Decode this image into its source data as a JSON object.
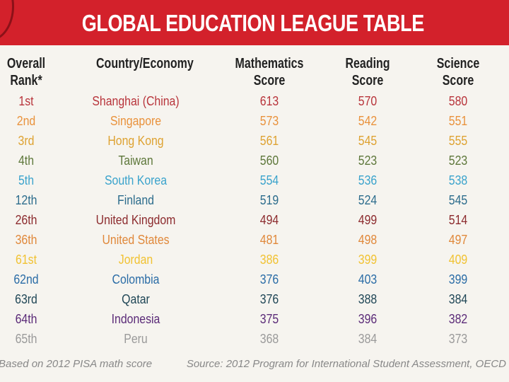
{
  "header": {
    "title": "GLOBAL EDUCATION LEAGUE TABLE"
  },
  "table": {
    "columns": [
      {
        "lines": [
          "Overall",
          "Rank*"
        ]
      },
      {
        "lines": [
          "Country/Economy"
        ]
      },
      {
        "lines": [
          "Mathematics",
          "Score"
        ]
      },
      {
        "lines": [
          "Reading",
          "Score"
        ]
      },
      {
        "lines": [
          "Science",
          "Score"
        ]
      }
    ],
    "rows": [
      {
        "color": "#b8343b",
        "cells": [
          "1st",
          "Shanghai (China)",
          613,
          570,
          580
        ]
      },
      {
        "color": "#e9923c",
        "cells": [
          "2nd",
          "Singapore",
          573,
          542,
          551
        ]
      },
      {
        "color": "#dea231",
        "cells": [
          "3rd",
          "Hong Kong",
          561,
          545,
          555
        ]
      },
      {
        "color": "#5d773a",
        "cells": [
          "4th",
          "Taiwan",
          560,
          523,
          523
        ]
      },
      {
        "color": "#3aa3cc",
        "cells": [
          "5th",
          "South Korea",
          554,
          536,
          538
        ]
      },
      {
        "color": "#2c6c8c",
        "cells": [
          "12th",
          "Finland",
          519,
          524,
          545
        ]
      },
      {
        "color": "#8c2b2e",
        "cells": [
          "26th",
          "United Kingdom",
          494,
          499,
          514
        ]
      },
      {
        "color": "#e0883a",
        "cells": [
          "36th",
          "United States",
          481,
          498,
          497
        ]
      },
      {
        "color": "#f1c232",
        "cells": [
          "61st",
          "Jordan",
          386,
          399,
          409
        ]
      },
      {
        "color": "#2a6ca6",
        "cells": [
          "62nd",
          "Colombia",
          376,
          403,
          399
        ]
      },
      {
        "color": "#1f4656",
        "cells": [
          "63rd",
          "Qatar",
          376,
          388,
          384
        ]
      },
      {
        "color": "#5b2b78",
        "cells": [
          "64th",
          "Indonesia",
          375,
          396,
          382
        ]
      },
      {
        "color": "#9a9a9a",
        "cells": [
          "65th",
          "Peru",
          368,
          384,
          373
        ]
      }
    ]
  },
  "footer": {
    "note": "Based on 2012 PISA math score",
    "source": "Source: 2012 Program for International Student Assessment, OECD"
  }
}
